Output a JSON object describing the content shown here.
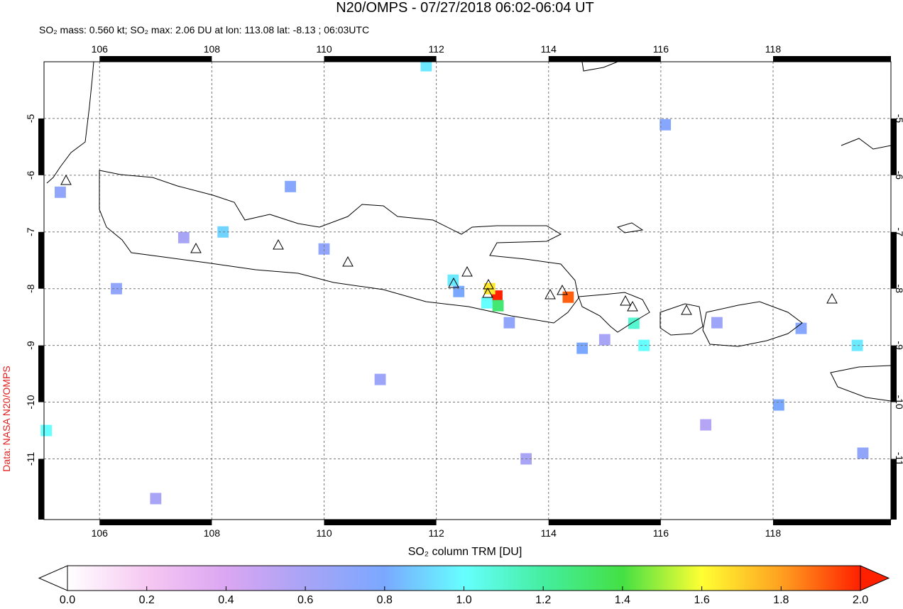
{
  "chart_data": {
    "type": "map",
    "title": "N20/OMPS - 07/27/2018 06:02-06:04 UT",
    "subtitle": "SO₂ mass: 0.560 kt; SO₂ max: 2.06 DU at lon: 113.08 lat: -8.13 ; 06:03UTC",
    "credit": "Data: NASA N20/OMPS",
    "colorbar_label": "SO₂ column TRM [DU]",
    "xlim": [
      105.01,
      120.1
    ],
    "ylim": [
      -12.07,
      -4.0
    ],
    "xticks": [
      106,
      108,
      110,
      112,
      114,
      116,
      118
    ],
    "yticks": [
      -5,
      -6,
      -7,
      -8,
      -9,
      -10,
      -11
    ],
    "grid": true,
    "clim": [
      0,
      2
    ],
    "colormap": [
      "#ffffff",
      "#f6c8f2",
      "#dba6f2",
      "#a8a4f6",
      "#7aa8ff",
      "#66ffff",
      "#44eea0",
      "#44e044",
      "#ffff33",
      "#ffa020",
      "#ff2000"
    ],
    "cticks": [
      {
        "value": 0,
        "label": "0.0"
      },
      {
        "value": 0.2,
        "label": "0.2"
      },
      {
        "value": 0.4,
        "label": "0.4"
      },
      {
        "value": 0.6,
        "label": "0.6"
      },
      {
        "value": 0.8,
        "label": "0.8"
      },
      {
        "value": 1,
        "label": "1.0"
      },
      {
        "value": 1.2,
        "label": "1.2"
      },
      {
        "value": 1.4,
        "label": "1.4"
      },
      {
        "value": 1.6,
        "label": "1.6"
      },
      {
        "value": 1.8,
        "label": "1.8"
      },
      {
        "value": 2,
        "label": "2.0"
      }
    ],
    "pixels": {
      "lon": [
        113.08,
        114.35,
        112.95,
        112.9,
        113.1,
        115.52,
        115.7,
        112.3,
        112.4,
        111.82,
        105.05,
        119.5,
        118.1,
        116.08,
        113.3,
        114.6,
        110.0,
        108.2,
        107.5,
        109.4,
        106.3,
        105.3,
        117.0,
        118.5,
        119.6,
        115.0,
        111.0,
        113.6,
        116.8,
        107.0
      ],
      "lat": [
        -8.13,
        -8.15,
        -8.0,
        -8.25,
        -8.3,
        -8.61,
        -9.0,
        -7.85,
        -8.05,
        -4.07,
        -10.5,
        -9.0,
        -10.05,
        -5.11,
        -8.6,
        -9.05,
        -7.3,
        -7.0,
        -7.1,
        -6.2,
        -8.0,
        -6.3,
        -8.6,
        -8.7,
        -10.9,
        -8.9,
        -9.6,
        -11.0,
        -10.4,
        -11.7
      ],
      "values": [
        2.06,
        1.9,
        1.65,
        1.0,
        1.3,
        1.1,
        1.0,
        0.95,
        0.8,
        0.95,
        1.0,
        0.95,
        0.8,
        0.75,
        0.7,
        0.8,
        0.7,
        0.9,
        0.6,
        0.75,
        0.7,
        0.7,
        0.65,
        0.75,
        0.7,
        0.6,
        0.65,
        0.6,
        0.55,
        0.6
      ]
    }
  }
}
